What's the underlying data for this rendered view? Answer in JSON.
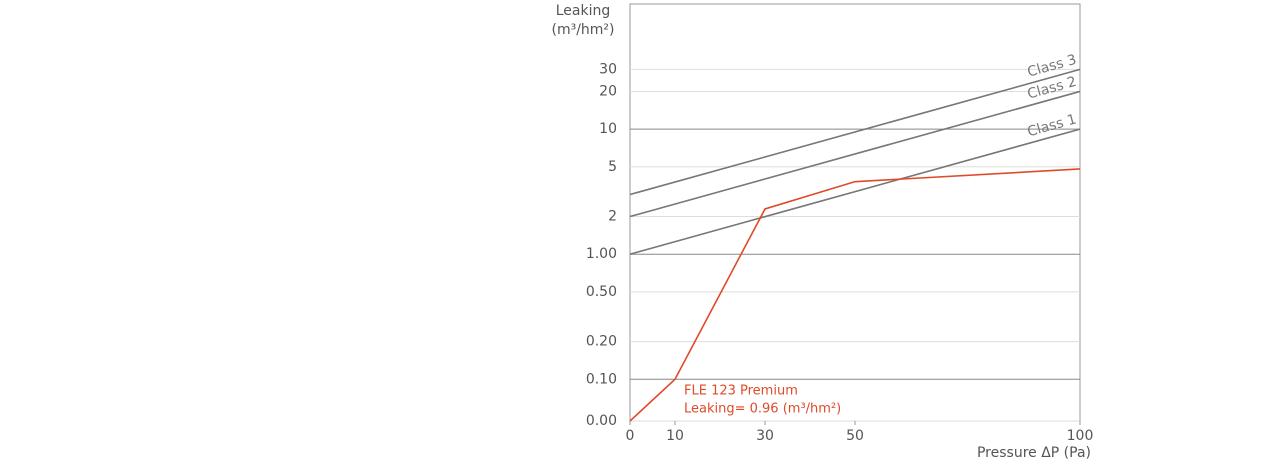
{
  "chart_data": {
    "type": "line",
    "y_title_lines": [
      "Leaking",
      "(m³/hm²)"
    ],
    "x_title": "Pressure ΔP (Pa)",
    "annotation": "Leaking= 0.96 (m³/hm²)",
    "yscale": "log",
    "xlim": [
      0,
      100
    ],
    "xticks": [
      0,
      10,
      30,
      50,
      100
    ],
    "ylim": [
      0,
      100
    ],
    "yticks": [
      30,
      20,
      10,
      5,
      2,
      {
        "value": 1,
        "label": "1.00"
      },
      {
        "value": 0.5,
        "label": "0.50"
      },
      {
        "value": 0.2,
        "label": "0.20"
      },
      {
        "value": 0.1,
        "label": "0.10"
      },
      {
        "value": 0,
        "label": "0.00"
      }
    ],
    "grid": true,
    "series": [
      {
        "name": "Class 1",
        "color": "#777777",
        "x": [
          0,
          100
        ],
        "values": [
          1,
          10
        ]
      },
      {
        "name": "Class 2",
        "color": "#777777",
        "x": [
          0,
          100
        ],
        "values": [
          2,
          20
        ]
      },
      {
        "name": "Class 3",
        "color": "#777777",
        "x": [
          0,
          100
        ],
        "values": [
          3,
          30
        ]
      },
      {
        "name": "FLE 123 Premium",
        "color": "#e04a2a",
        "x": [
          0,
          10,
          30,
          50,
          100
        ],
        "values": [
          0,
          0.1,
          2.3,
          3.8,
          4.8
        ]
      }
    ]
  }
}
